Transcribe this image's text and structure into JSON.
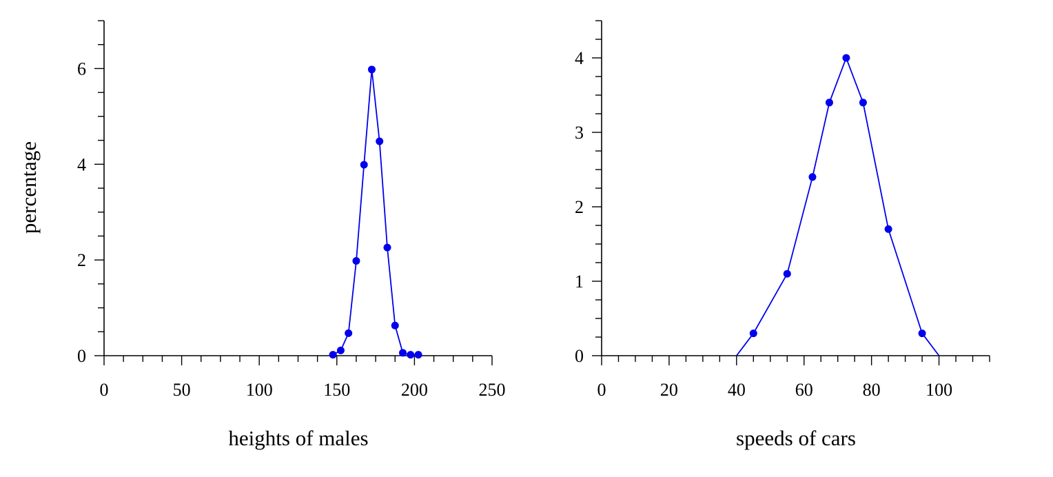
{
  "shared_ylabel": "percentage",
  "chart_data": [
    {
      "type": "line",
      "xlabel": "heights of males",
      "ylabel": "percentage",
      "xlim": [
        0,
        250
      ],
      "ylim": [
        0,
        7
      ],
      "xticks": [
        0,
        50,
        100,
        150,
        200,
        250
      ],
      "xtick_labels": [
        "0",
        "50",
        "100",
        "150",
        "200",
        "250"
      ],
      "yticks": [
        0,
        2,
        4,
        6
      ],
      "ytick_labels": [
        "0",
        "2",
        "4",
        "6"
      ],
      "x_minor_step": 12.5,
      "y_minor_step": 0.5,
      "grid": false,
      "color": "#0000ee",
      "series": [
        {
          "x": [
            147.5,
            152.5,
            157.5,
            162.5,
            167.5,
            172.5,
            177.5,
            182.5,
            187.5,
            192.5,
            197.5,
            202.5
          ],
          "y": [
            0.02,
            0.11,
            0.47,
            1.98,
            3.99,
            5.98,
            4.48,
            2.26,
            0.63,
            0.06,
            0.02,
            0.02
          ]
        }
      ]
    },
    {
      "type": "line",
      "xlabel": "speeds of cars",
      "ylabel": "",
      "xlim": [
        0,
        115
      ],
      "ylim": [
        0,
        4.5
      ],
      "xticks": [
        0,
        20,
        40,
        60,
        80,
        100
      ],
      "xtick_labels": [
        "0",
        "20",
        "40",
        "60",
        "80",
        "100"
      ],
      "yticks": [
        0,
        1,
        2,
        3,
        4
      ],
      "ytick_labels": [
        "0",
        "1",
        "2",
        "3",
        "4"
      ],
      "x_minor_step": 5,
      "y_minor_step": 0.25,
      "grid": false,
      "color": "#0000ee",
      "series": [
        {
          "x": [
            40,
            45,
            55,
            62.5,
            67.5,
            72.5,
            77.5,
            85,
            95,
            100
          ],
          "y": [
            0,
            0.3,
            1.1,
            2.4,
            3.4,
            4.0,
            3.4,
            1.7,
            0.3,
            0
          ],
          "marker_x": [
            45,
            55,
            62.5,
            67.5,
            72.5,
            77.5,
            85,
            95
          ],
          "marker_y": [
            0.3,
            1.1,
            2.4,
            3.4,
            4.0,
            3.4,
            1.7,
            0.3
          ]
        }
      ]
    }
  ]
}
